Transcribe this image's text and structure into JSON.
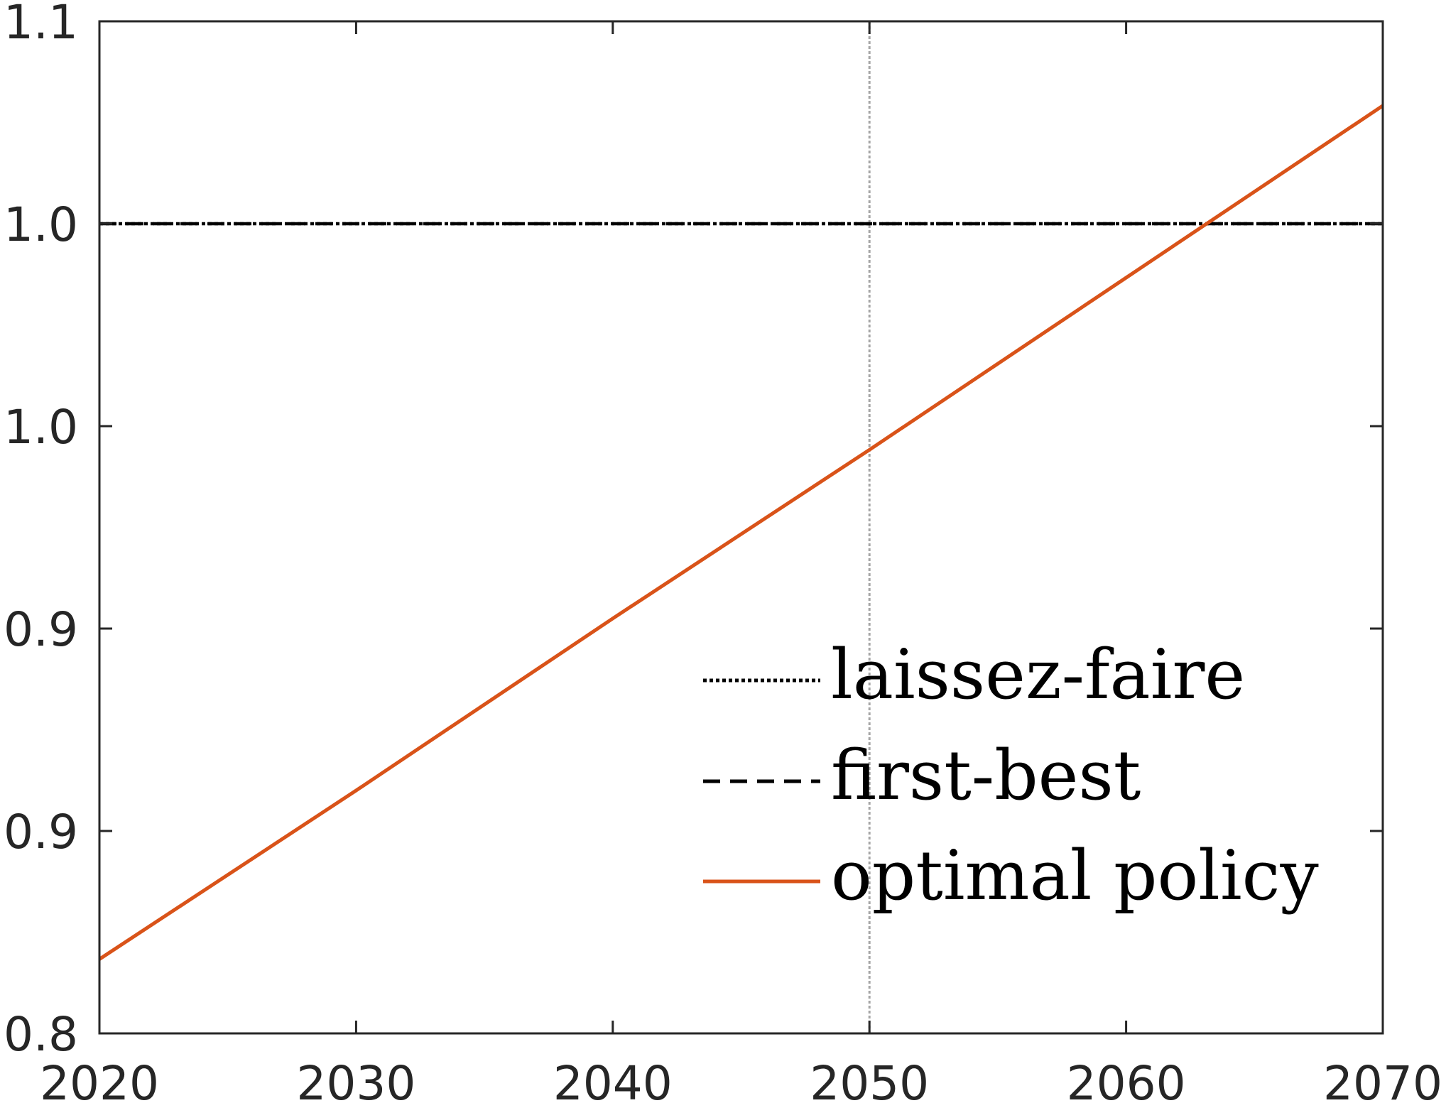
{
  "chart_data": {
    "type": "line",
    "title": "",
    "xlabel": "",
    "ylabel": "",
    "xlim": [
      2020,
      2070
    ],
    "ylim": [
      0.8,
      1.1
    ],
    "x_ticks": [
      2020,
      2030,
      2040,
      2050,
      2060,
      2070
    ],
    "x_tick_labels": [
      "2020",
      "2030",
      "2040",
      "2050",
      "2060",
      "2070"
    ],
    "y_ticks": [
      0.8,
      0.86,
      0.92,
      0.98,
      1.04,
      1.1
    ],
    "y_tick_labels": [
      "0.8",
      "0.9",
      "0.9",
      "1.0",
      "1.0",
      "1.1"
    ],
    "grid": false,
    "reference_line": {
      "x": 2050,
      "color": "#a6a6a6",
      "style": "dotted"
    },
    "legend": {
      "location": "lower-right",
      "entries": [
        {
          "label": "laissez-faire",
          "style": "dotted",
          "color": "#000000"
        },
        {
          "label": "first-best",
          "style": "dashed",
          "color": "#000000"
        },
        {
          "label": "optimal policy",
          "style": "solid",
          "color": "#d95319"
        }
      ]
    },
    "series": [
      {
        "name": "laissez-faire",
        "style": "dotted",
        "color": "#000000",
        "x": [
          2020,
          2070
        ],
        "y": [
          1.04,
          1.04
        ]
      },
      {
        "name": "first-best",
        "style": "dashed",
        "color": "#000000",
        "x": [
          2020,
          2070
        ],
        "y": [
          1.04,
          1.04
        ]
      },
      {
        "name": "optimal policy",
        "style": "solid",
        "color": "#d95319",
        "x": [
          2020,
          2030,
          2040,
          2050,
          2060,
          2070
        ],
        "y": [
          0.822,
          0.872,
          0.923,
          0.973,
          1.024,
          1.075
        ]
      }
    ]
  }
}
